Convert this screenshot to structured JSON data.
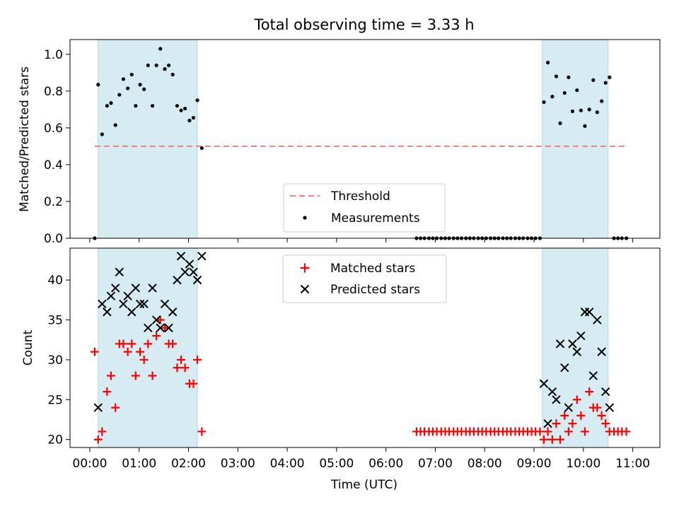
{
  "chart_data": [
    {
      "type": "scatter",
      "title": "Total observing time = 3.33 h",
      "ylabel": "Matched/Predicted stars",
      "xlim": [
        -0.4,
        11.55
      ],
      "ylim": [
        0.0,
        1.08
      ],
      "yticks": [
        0.0,
        0.2,
        0.4,
        0.6,
        0.8,
        1.0
      ],
      "ytick_labels": [
        "0.0",
        "0.2",
        "0.4",
        "0.6",
        "0.8",
        "1.0"
      ],
      "shaded_ranges": [
        [
          0.17,
          2.18
        ],
        [
          9.17,
          10.5
        ]
      ],
      "threshold": {
        "value": 0.5,
        "x_range": [
          0.1,
          10.87
        ]
      },
      "legend": {
        "placement": "lower center",
        "entries": [
          {
            "label": "Threshold",
            "color": "#f08080",
            "marker": "dashed-line"
          },
          {
            "label": "Measurements",
            "color": "#000000",
            "marker": "dot"
          }
        ]
      },
      "series": [
        {
          "name": "Measurements",
          "color": "#000000",
          "points": [
            [
              0.1,
              0.0
            ],
            [
              0.17,
              0.835
            ],
            [
              0.25,
              0.565
            ],
            [
              0.35,
              0.72
            ],
            [
              0.43,
              0.735
            ],
            [
              0.52,
              0.615
            ],
            [
              0.6,
              0.78
            ],
            [
              0.68,
              0.865
            ],
            [
              0.77,
              0.815
            ],
            [
              0.85,
              0.89
            ],
            [
              0.93,
              0.72
            ],
            [
              1.02,
              0.835
            ],
            [
              1.1,
              0.81
            ],
            [
              1.18,
              0.94
            ],
            [
              1.27,
              0.72
            ],
            [
              1.35,
              0.94
            ],
            [
              1.43,
              1.03
            ],
            [
              1.52,
              0.92
            ],
            [
              1.6,
              0.94
            ],
            [
              1.68,
              0.89
            ],
            [
              1.77,
              0.72
            ],
            [
              1.85,
              0.695
            ],
            [
              1.93,
              0.705
            ],
            [
              2.02,
              0.64
            ],
            [
              2.1,
              0.655
            ],
            [
              2.18,
              0.75
            ],
            [
              2.27,
              0.49
            ],
            [
              6.62,
              0.0
            ],
            [
              6.7,
              0.0
            ],
            [
              6.78,
              0.0
            ],
            [
              6.87,
              0.0
            ],
            [
              6.95,
              0.0
            ],
            [
              7.03,
              0.0
            ],
            [
              7.12,
              0.0
            ],
            [
              7.2,
              0.0
            ],
            [
              7.28,
              0.0
            ],
            [
              7.37,
              0.0
            ],
            [
              7.45,
              0.0
            ],
            [
              7.53,
              0.0
            ],
            [
              7.62,
              0.0
            ],
            [
              7.7,
              0.0
            ],
            [
              7.78,
              0.0
            ],
            [
              7.87,
              0.0
            ],
            [
              7.95,
              0.0
            ],
            [
              8.03,
              0.0
            ],
            [
              8.12,
              0.0
            ],
            [
              8.2,
              0.0
            ],
            [
              8.28,
              0.0
            ],
            [
              8.37,
              0.0
            ],
            [
              8.45,
              0.0
            ],
            [
              8.53,
              0.0
            ],
            [
              8.62,
              0.0
            ],
            [
              8.7,
              0.0
            ],
            [
              8.78,
              0.0
            ],
            [
              8.87,
              0.0
            ],
            [
              8.95,
              0.0
            ],
            [
              9.03,
              0.0
            ],
            [
              9.12,
              0.0
            ],
            [
              9.2,
              0.74
            ],
            [
              9.28,
              0.955
            ],
            [
              9.37,
              0.77
            ],
            [
              9.45,
              0.88
            ],
            [
              9.53,
              0.625
            ],
            [
              9.62,
              0.79
            ],
            [
              9.7,
              0.875
            ],
            [
              9.78,
              0.69
            ],
            [
              9.87,
              0.805
            ],
            [
              9.95,
              0.695
            ],
            [
              10.03,
              0.61
            ],
            [
              10.12,
              0.7
            ],
            [
              10.2,
              0.86
            ],
            [
              10.28,
              0.685
            ],
            [
              10.37,
              0.745
            ],
            [
              10.45,
              0.845
            ],
            [
              10.53,
              0.875
            ],
            [
              10.62,
              0.0
            ],
            [
              10.7,
              0.0
            ],
            [
              10.78,
              0.0
            ],
            [
              10.87,
              0.0
            ]
          ]
        }
      ]
    },
    {
      "type": "scatter",
      "xlabel": "Time (UTC)",
      "ylabel": "Count",
      "xlim": [
        -0.4,
        11.55
      ],
      "ylim": [
        19.0,
        44.0
      ],
      "xticks": [
        0,
        1,
        2,
        3,
        4,
        5,
        6,
        7,
        8,
        9,
        10,
        11
      ],
      "xtick_labels": [
        "00:00",
        "01:00",
        "02:00",
        "03:00",
        "04:00",
        "05:00",
        "06:00",
        "07:00",
        "08:00",
        "09:00",
        "10:00",
        "11:00"
      ],
      "yticks": [
        20,
        25,
        30,
        35,
        40
      ],
      "ytick_labels": [
        "20",
        "25",
        "30",
        "35",
        "40"
      ],
      "shaded_ranges": [
        [
          0.17,
          2.18
        ],
        [
          9.17,
          10.5
        ]
      ],
      "legend": {
        "placement": "upper center",
        "entries": [
          {
            "label": "Matched stars",
            "color": "#ff0000",
            "marker": "plus"
          },
          {
            "label": "Predicted stars",
            "color": "#000000",
            "marker": "x"
          }
        ]
      },
      "series": [
        {
          "name": "Matched stars",
          "color": "#ff0000",
          "points": [
            [
              0.1,
              31
            ],
            [
              0.17,
              20
            ],
            [
              0.25,
              21
            ],
            [
              0.35,
              26
            ],
            [
              0.43,
              28
            ],
            [
              0.52,
              24
            ],
            [
              0.6,
              32
            ],
            [
              0.68,
              32
            ],
            [
              0.77,
              31
            ],
            [
              0.85,
              32
            ],
            [
              0.93,
              28
            ],
            [
              1.02,
              31
            ],
            [
              1.1,
              30
            ],
            [
              1.18,
              32
            ],
            [
              1.27,
              28
            ],
            [
              1.35,
              33
            ],
            [
              1.43,
              35
            ],
            [
              1.52,
              34
            ],
            [
              1.6,
              32
            ],
            [
              1.68,
              32
            ],
            [
              1.77,
              29
            ],
            [
              1.85,
              30
            ],
            [
              1.93,
              29
            ],
            [
              2.02,
              27
            ],
            [
              2.1,
              27
            ],
            [
              2.18,
              30
            ],
            [
              2.27,
              21
            ],
            [
              6.62,
              21
            ],
            [
              6.7,
              21
            ],
            [
              6.78,
              21
            ],
            [
              6.87,
              21
            ],
            [
              6.95,
              21
            ],
            [
              7.03,
              21
            ],
            [
              7.12,
              21
            ],
            [
              7.2,
              21
            ],
            [
              7.28,
              21
            ],
            [
              7.37,
              21
            ],
            [
              7.45,
              21
            ],
            [
              7.53,
              21
            ],
            [
              7.62,
              21
            ],
            [
              7.7,
              21
            ],
            [
              7.78,
              21
            ],
            [
              7.87,
              21
            ],
            [
              7.95,
              21
            ],
            [
              8.03,
              21
            ],
            [
              8.12,
              21
            ],
            [
              8.2,
              21
            ],
            [
              8.28,
              21
            ],
            [
              8.37,
              21
            ],
            [
              8.45,
              21
            ],
            [
              8.53,
              21
            ],
            [
              8.62,
              21
            ],
            [
              8.7,
              21
            ],
            [
              8.78,
              21
            ],
            [
              8.87,
              21
            ],
            [
              8.95,
              21
            ],
            [
              9.03,
              21
            ],
            [
              9.12,
              21
            ],
            [
              9.2,
              20
            ],
            [
              9.28,
              21
            ],
            [
              9.37,
              20
            ],
            [
              9.45,
              22
            ],
            [
              9.53,
              20
            ],
            [
              9.62,
              23
            ],
            [
              9.7,
              21
            ],
            [
              9.78,
              22
            ],
            [
              9.87,
              25
            ],
            [
              9.95,
              23
            ],
            [
              10.03,
              21
            ],
            [
              10.12,
              26
            ],
            [
              10.2,
              24
            ],
            [
              10.28,
              24
            ],
            [
              10.37,
              23
            ],
            [
              10.45,
              22
            ],
            [
              10.53,
              21
            ],
            [
              10.62,
              21
            ],
            [
              10.7,
              21
            ],
            [
              10.78,
              21
            ],
            [
              10.87,
              21
            ]
          ]
        },
        {
          "name": "Predicted stars",
          "color": "#000000",
          "points": [
            [
              0.17,
              24
            ],
            [
              0.25,
              37
            ],
            [
              0.35,
              36
            ],
            [
              0.43,
              38
            ],
            [
              0.52,
              39
            ],
            [
              0.6,
              41
            ],
            [
              0.68,
              37
            ],
            [
              0.77,
              38
            ],
            [
              0.85,
              36
            ],
            [
              0.93,
              39
            ],
            [
              1.02,
              37
            ],
            [
              1.1,
              37
            ],
            [
              1.18,
              34
            ],
            [
              1.27,
              39
            ],
            [
              1.35,
              35
            ],
            [
              1.43,
              34
            ],
            [
              1.52,
              37
            ],
            [
              1.6,
              34
            ],
            [
              1.68,
              36
            ],
            [
              1.77,
              40
            ],
            [
              1.85,
              43
            ],
            [
              1.93,
              41
            ],
            [
              2.02,
              42
            ],
            [
              2.1,
              41
            ],
            [
              2.18,
              40
            ],
            [
              2.27,
              43
            ],
            [
              9.2,
              27
            ],
            [
              9.28,
              22
            ],
            [
              9.37,
              26
            ],
            [
              9.45,
              25
            ],
            [
              9.53,
              32
            ],
            [
              9.62,
              29
            ],
            [
              9.7,
              24
            ],
            [
              9.78,
              32
            ],
            [
              9.87,
              31
            ],
            [
              9.95,
              33
            ],
            [
              10.03,
              36
            ],
            [
              10.12,
              36
            ],
            [
              10.2,
              28
            ],
            [
              10.28,
              35
            ],
            [
              10.37,
              31
            ],
            [
              10.45,
              26
            ],
            [
              10.53,
              24
            ]
          ]
        }
      ]
    }
  ]
}
